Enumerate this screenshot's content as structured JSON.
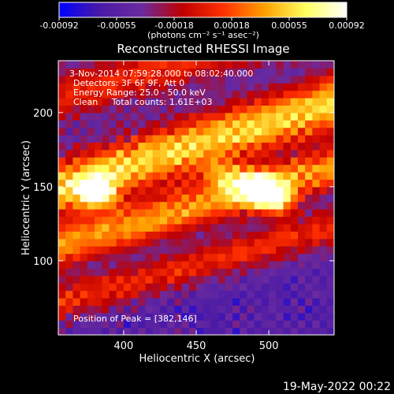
{
  "chart_data": {
    "type": "heatmap",
    "title": "Reconstructed RHESSI Image",
    "xlabel": "Heliocentric X (arcsec)",
    "ylabel": "Heliocentric Y (arcsec)",
    "xlim": [
      355,
      545
    ],
    "ylim": [
      50,
      235
    ],
    "x_ticks": [
      400,
      450,
      500
    ],
    "y_ticks": [
      100,
      150,
      200
    ],
    "colorbar": {
      "label": "(photons cm⁻² s⁻¹ asec⁻²)",
      "min": -0.00092,
      "max": 0.00092,
      "ticks": [
        "-0.00092",
        "-0.00055",
        "-0.00018",
        "0.00018",
        "0.00055",
        "0.00092"
      ],
      "colors": [
        "#0000ff",
        "#4a1aa6",
        "#6a2aa0",
        "#c00000",
        "#ff3000",
        "#ffa000",
        "#ffff60",
        "#ffffff"
      ]
    },
    "annotations": [
      "3-Nov-2014 07:59:28.000 to 08:02:40.000",
      "Detectors: 3F 6F 9F, Att 0",
      "Energy Range: 25.0 - 50.0 keV",
      "Clean     Total counts: 1.61E+03"
    ],
    "peak_label": "Position of Peak = [382,146]",
    "peak": [
      382,
      146
    ],
    "bands": [
      {
        "y_at_left": 210,
        "slope": 0.28,
        "width": 18,
        "amp": 0.55
      },
      {
        "y_at_left": 150,
        "slope": 0.3,
        "width": 20,
        "amp": 1.0
      },
      {
        "y_at_left": 110,
        "slope": 0.28,
        "width": 15,
        "amp": 0.85
      },
      {
        "y_at_left": 72,
        "slope": 0.27,
        "width": 14,
        "amp": 0.55
      }
    ],
    "hotspots": [
      {
        "x": 382,
        "y": 146,
        "amp": 0.9
      },
      {
        "x": 492,
        "y": 150,
        "amp": 0.95
      },
      {
        "x": 505,
        "y": 140,
        "amp": 0.8
      },
      {
        "x": 470,
        "y": 158,
        "amp": 0.6
      }
    ]
  },
  "footer": {
    "date": "19-May-2022 00:22"
  }
}
